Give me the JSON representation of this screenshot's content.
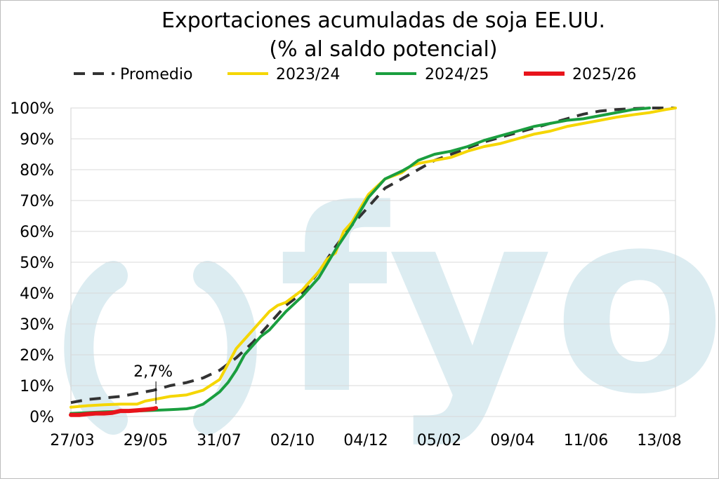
{
  "chart_data": {
    "type": "line",
    "title": "Exportaciones acumuladas de soja EE.UU.",
    "subtitle": "(% al saldo potencial)",
    "x_tick_labels": [
      "27/03",
      "29/05",
      "31/07",
      "02/10",
      "04/12",
      "05/02",
      "09/04",
      "11/06",
      "13/08"
    ],
    "y_tick_labels": [
      "0%",
      "10%",
      "20%",
      "30%",
      "40%",
      "50%",
      "60%",
      "70%",
      "80%",
      "90%",
      "100%"
    ],
    "ylim": [
      0,
      100
    ],
    "xlim": [
      0,
      512
    ],
    "watermark": "fyo",
    "annotation": {
      "text": "2,7%",
      "x": 72,
      "y": 2.7
    },
    "series": [
      {
        "name": "Promedio",
        "color": "#333333",
        "dashed": true,
        "x": [
          0,
          14,
          28,
          42,
          56,
          70,
          84,
          98,
          112,
          126,
          140,
          154,
          168,
          182,
          189,
          196,
          210,
          224,
          238,
          252,
          266,
          280,
          294,
          308,
          322,
          336,
          350,
          364,
          378,
          392,
          406,
          420,
          434,
          448,
          462,
          476,
          490,
          504,
          512
        ],
        "y": [
          4.5,
          5.5,
          6,
          6.5,
          7.5,
          8.5,
          10,
          11,
          12.5,
          15,
          19,
          24,
          30,
          36,
          38,
          40,
          47,
          55,
          62,
          68,
          74,
          77,
          80,
          83,
          85,
          87,
          89,
          90.5,
          92,
          93.5,
          95,
          96.5,
          98,
          99,
          99.5,
          99.8,
          100,
          100,
          100
        ]
      },
      {
        "name": "2023/24",
        "color": "#f5d600",
        "dashed": false,
        "x": [
          0,
          14,
          28,
          42,
          56,
          63,
          70,
          84,
          98,
          112,
          126,
          140,
          147,
          154,
          168,
          175,
          182,
          196,
          210,
          217,
          224,
          231,
          238,
          252,
          266,
          280,
          287,
          294,
          308,
          322,
          336,
          350,
          364,
          378,
          392,
          406,
          420,
          434,
          448,
          462,
          476,
          490,
          504,
          512
        ],
        "y": [
          3,
          3.5,
          3.8,
          4,
          4,
          5,
          5.5,
          6.5,
          7,
          8.5,
          12,
          22,
          25,
          28,
          34,
          36,
          37,
          41,
          47,
          51,
          53,
          60,
          63,
          72,
          77,
          79,
          81,
          82,
          83,
          84,
          86,
          87.5,
          88.5,
          90,
          91.5,
          92.5,
          94,
          95,
          96,
          97,
          97.8,
          98.5,
          99.5,
          100
        ]
      },
      {
        "name": "2024/25",
        "color": "#1a9e3f",
        "dashed": false,
        "x": [
          0,
          28,
          56,
          70,
          84,
          98,
          105,
          112,
          119,
          126,
          133,
          140,
          147,
          154,
          161,
          168,
          182,
          196,
          210,
          224,
          238,
          252,
          266,
          280,
          287,
          294,
          308,
          322,
          336,
          350,
          364,
          378,
          392,
          406,
          420,
          434,
          448,
          462,
          476,
          490
        ],
        "y": [
          1,
          1.5,
          1.8,
          2,
          2.2,
          2.5,
          3,
          4,
          6,
          8,
          11,
          15,
          20,
          23,
          26,
          28,
          34,
          39,
          45,
          54,
          62,
          71,
          77,
          79.5,
          81,
          83,
          85,
          86,
          87.5,
          89.5,
          91,
          92.5,
          94,
          95,
          96,
          96.5,
          97.5,
          98.5,
          99.5,
          100
        ]
      },
      {
        "name": "2025/26",
        "color": "#e8141b",
        "dashed": false,
        "x": [
          0,
          7,
          14,
          21,
          28,
          35,
          42,
          49,
          56,
          63,
          70,
          72
        ],
        "y": [
          0.5,
          0.5,
          0.8,
          1,
          1,
          1.2,
          1.8,
          1.8,
          2,
          2.2,
          2.5,
          2.7
        ]
      }
    ]
  }
}
